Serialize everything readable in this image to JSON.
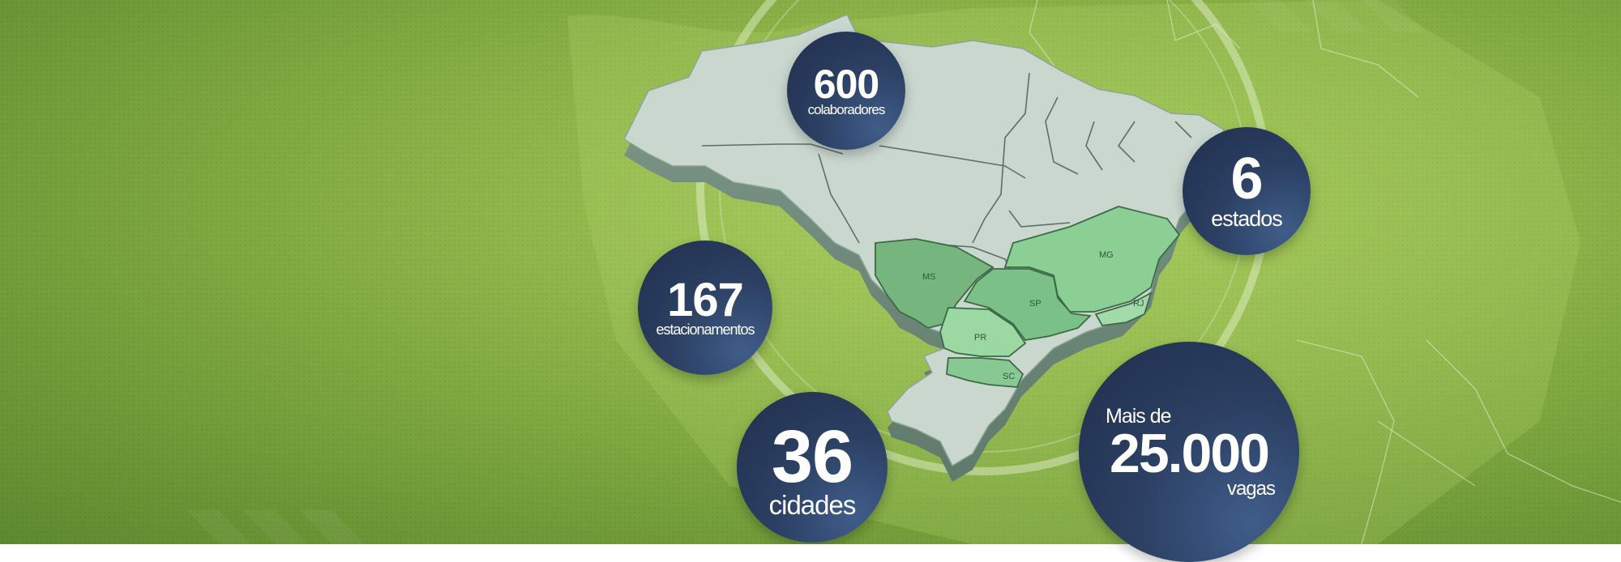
{
  "stats": {
    "collaborators": {
      "value": "600",
      "label": "colaboradores"
    },
    "states": {
      "value": "6",
      "label": "estados"
    },
    "parking_lots": {
      "value": "167",
      "label": "estacionamentos"
    },
    "cities": {
      "value": "36",
      "label": "cidades"
    },
    "spaces": {
      "prefix": "Mais de",
      "value": "25.000",
      "label": "vagas"
    }
  },
  "map": {
    "highlighted_states": [
      "MS",
      "MG",
      "SP",
      "RJ",
      "PR",
      "SC"
    ]
  },
  "colors": {
    "background_green": "#8fb64a",
    "circle_navy": "#2c4063",
    "map_gray": "#c9d7cf",
    "state_green": "#8ccf95"
  }
}
